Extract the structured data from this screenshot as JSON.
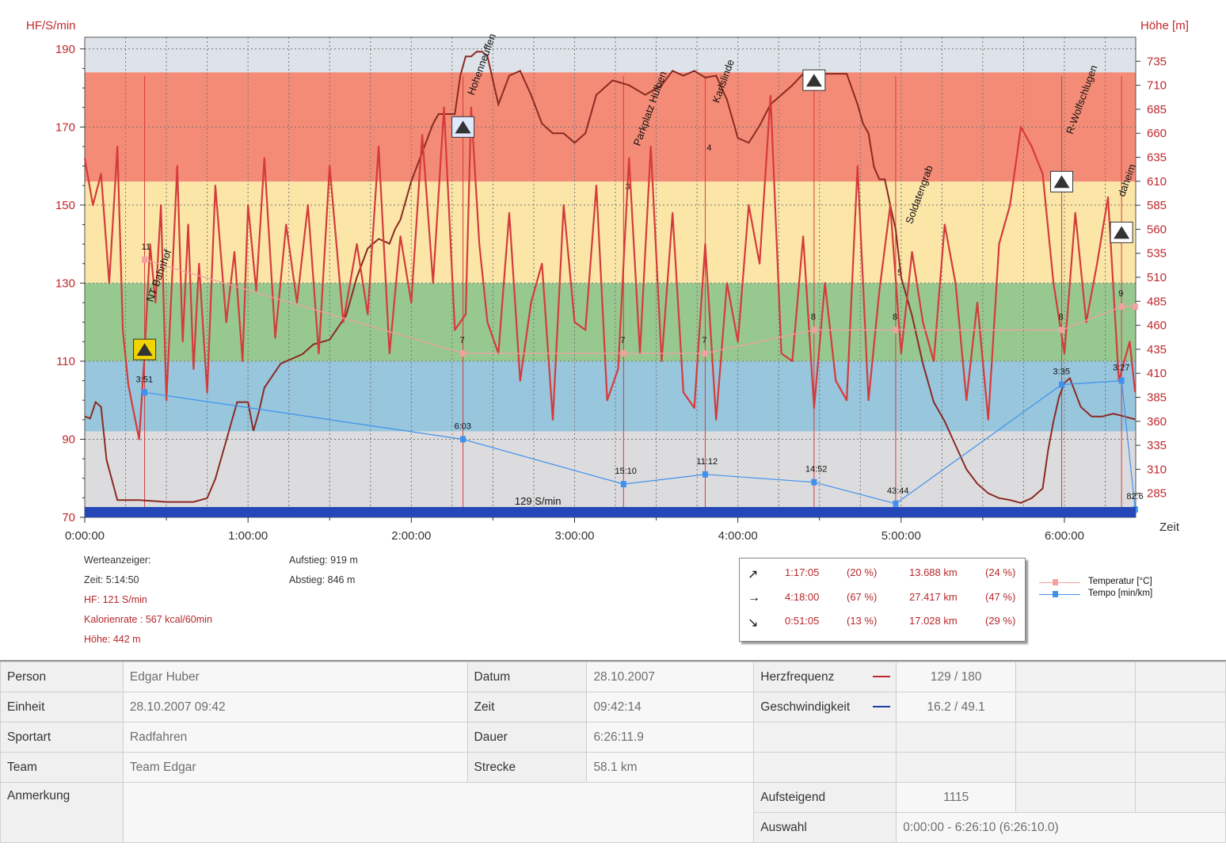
{
  "chart_data": {
    "type": "line",
    "y_left_label": "HF/S/min",
    "y_right_label": "Höhe [m]",
    "x_label": "Zeit",
    "y_left_ticks": [
      190,
      170,
      150,
      130,
      110,
      90,
      70
    ],
    "y_left_range": [
      70,
      193
    ],
    "y_right_ticks": [
      735,
      710,
      685,
      660,
      635,
      610,
      585,
      560,
      535,
      510,
      485,
      460,
      435,
      410,
      385,
      360,
      335,
      310,
      285
    ],
    "y_right_range": [
      260,
      760
    ],
    "x_ticks": [
      "0:00:00",
      "1:00:00",
      "2:00:00",
      "3:00:00",
      "4:00:00",
      "5:00:00",
      "6:00:00"
    ],
    "x_tick_minutes": [
      0,
      60,
      120,
      180,
      240,
      300,
      360
    ],
    "x_range_minutes": [
      0,
      386.2
    ],
    "zones": [
      {
        "from": 184,
        "to": 193,
        "color": "#dde3e9"
      },
      {
        "from": 156,
        "to": 184,
        "color": "#f48b76"
      },
      {
        "from": 130,
        "to": 156,
        "color": "#fbe6a8"
      },
      {
        "from": 110,
        "to": 130,
        "color": "#97c890"
      },
      {
        "from": 92,
        "to": 110,
        "color": "#97c6dd"
      },
      {
        "from": 70,
        "to": 92,
        "color": "#dcdcde"
      }
    ],
    "speed_band_label": "129 S/min",
    "series": [
      {
        "name": "HF",
        "color": "#d53b3b",
        "x": [
          0,
          3,
          6,
          9,
          12,
          14,
          16,
          18,
          20,
          22,
          24,
          26,
          28,
          30,
          32,
          34,
          36,
          38,
          40,
          42,
          45,
          48,
          52,
          55,
          58,
          60,
          63,
          66,
          70,
          74,
          78,
          82,
          86,
          90,
          95,
          100,
          104,
          108,
          112,
          116,
          120,
          124,
          128,
          132,
          136,
          140,
          142,
          145,
          148,
          152,
          156,
          160,
          164,
          168,
          172,
          176,
          180,
          184,
          188,
          192,
          196,
          200,
          204,
          208,
          212,
          216,
          220,
          224,
          228,
          232,
          236,
          240,
          244,
          248,
          252,
          256,
          260,
          264,
          268,
          272,
          276,
          280,
          284,
          288,
          292,
          296,
          300,
          304,
          308,
          312,
          316,
          320,
          324,
          328,
          332,
          336,
          340,
          344,
          348,
          352,
          356,
          360,
          364,
          368,
          372,
          376,
          380,
          384,
          386
        ],
        "values": [
          162,
          150,
          158,
          130,
          165,
          118,
          104,
          97,
          90,
          112,
          140,
          125,
          150,
          100,
          130,
          160,
          115,
          145,
          108,
          135,
          102,
          155,
          120,
          138,
          110,
          150,
          128,
          162,
          116,
          145,
          125,
          150,
          112,
          160,
          120,
          140,
          122,
          165,
          112,
          142,
          125,
          168,
          130,
          175,
          118,
          122,
          175,
          140,
          120,
          112,
          148,
          105,
          125,
          135,
          95,
          150,
          120,
          118,
          155,
          100,
          108,
          162,
          112,
          165,
          110,
          148,
          102,
          98,
          140,
          95,
          130,
          115,
          150,
          135,
          178,
          112,
          110,
          142,
          98,
          130,
          105,
          100,
          160,
          100,
          128,
          150,
          112,
          138,
          120,
          110,
          145,
          130,
          100,
          125,
          95,
          140,
          150,
          170,
          165,
          158,
          130,
          112,
          148,
          120,
          135,
          152,
          105,
          115,
          102
        ]
      },
      {
        "name": "Höhe",
        "color": "#8b2a22",
        "x": [
          0,
          2,
          4,
          6,
          8,
          12,
          20,
          30,
          40,
          45,
          48,
          52,
          56,
          60,
          62,
          64,
          66,
          72,
          80,
          84,
          90,
          96,
          100,
          104,
          108,
          112,
          114,
          116,
          120,
          124,
          128,
          130,
          133,
          136,
          138,
          140,
          142,
          144,
          146,
          148,
          152,
          156,
          160,
          164,
          168,
          172,
          176,
          180,
          184,
          188,
          190,
          194,
          200,
          206,
          212,
          216,
          220,
          224,
          228,
          232,
          236,
          240,
          244,
          248,
          252,
          256,
          260,
          264,
          268,
          272,
          276,
          280,
          284,
          286,
          288,
          290,
          292,
          294,
          296,
          298,
          300,
          304,
          308,
          312,
          316,
          320,
          324,
          328,
          332,
          336,
          340,
          344,
          348,
          352,
          354,
          356,
          358,
          360,
          362,
          366,
          370,
          374,
          378,
          382,
          386
        ],
        "values": [
          365,
          363,
          380,
          375,
          320,
          278,
          278,
          276,
          276,
          280,
          300,
          340,
          380,
          380,
          350,
          370,
          395,
          420,
          430,
          440,
          445,
          470,
          510,
          540,
          550,
          545,
          560,
          570,
          610,
          640,
          670,
          680,
          680,
          680,
          720,
          740,
          740,
          745,
          745,
          740,
          690,
          720,
          725,
          700,
          670,
          660,
          660,
          650,
          660,
          700,
          705,
          715,
          710,
          700,
          710,
          725,
          720,
          725,
          718,
          720,
          695,
          655,
          650,
          668,
          690,
          700,
          710,
          722,
          722,
          722,
          722,
          722,
          690,
          670,
          660,
          625,
          612,
          612,
          585,
          560,
          510,
          470,
          420,
          380,
          360,
          335,
          310,
          295,
          285,
          280,
          278,
          275,
          280,
          290,
          330,
          360,
          385,
          400,
          405,
          375,
          365,
          365,
          368,
          365,
          362
        ]
      },
      {
        "name": "Temperatur [°C]",
        "color": "#f4a0a0",
        "x": [
          22,
          139,
          198,
          228,
          268,
          298,
          359,
          381,
          386
        ],
        "values": [
          11,
          7,
          7,
          7,
          8,
          8,
          8,
          9,
          9
        ],
        "point_labels": [
          "11",
          "7",
          "7",
          "7",
          "8",
          "8",
          "8",
          "9",
          ""
        ]
      },
      {
        "name": "Tempo [min/km]",
        "color": "#3f91ee",
        "x": [
          22,
          139,
          198,
          228,
          268,
          298,
          359,
          381,
          386
        ],
        "y_hf_scale": [
          102,
          90,
          78.5,
          81,
          79,
          73.5,
          104,
          105,
          72
        ],
        "point_labels": [
          "3:51",
          "6:03",
          "15:10",
          "11:12",
          "14:52",
          "43:44",
          "3:35",
          "3:27",
          "82:6"
        ]
      }
    ],
    "markers_minutes": [
      22,
      139,
      198,
      228,
      268,
      298,
      359,
      381
    ],
    "marker_numbers": [
      {
        "x": 198,
        "hf": 154,
        "text": "3"
      },
      {
        "x": 228,
        "hf": 164,
        "text": "4"
      },
      {
        "x": 298,
        "hf": 132,
        "text": "5"
      }
    ],
    "places": [
      {
        "x": 25,
        "hf": 125,
        "text": "NT Bahnhof"
      },
      {
        "x": 143,
        "hf": 178,
        "text": "Hohenneuffen"
      },
      {
        "x": 204,
        "hf": 165,
        "text": "Parkplatz Hülben"
      },
      {
        "x": 233,
        "hf": 176,
        "text": "Karlslinde"
      },
      {
        "x": 304,
        "hf": 145,
        "text": "Soldatengrab"
      },
      {
        "x": 363,
        "hf": 168,
        "text": "R-Wolfschlugen"
      },
      {
        "x": 382,
        "hf": 152,
        "text": "daheim"
      }
    ]
  },
  "readout": {
    "title": "Werteanzeiger:",
    "zeit": "Zeit: 5:14:50",
    "hf": "HF: 121 S/min",
    "kalorien": "Kalorienrate : 567 kcal/60min",
    "hoehe": "Höhe: 442 m",
    "aufstieg": "Aufstieg: 919 m",
    "abstieg": "Abstieg: 846 m"
  },
  "stats": [
    {
      "arrow": "↗",
      "time": "1:17:05",
      "tpct": "(20 %)",
      "dist": "13.688 km",
      "dpct": "(24 %)"
    },
    {
      "arrow": "→",
      "time": "4:18:00",
      "tpct": "(67 %)",
      "dist": "27.417 km",
      "dpct": "(47 %)"
    },
    {
      "arrow": "↘",
      "time": "0:51:05",
      "tpct": "(13 %)",
      "dist": "17.028 km",
      "dpct": "(29 %)"
    }
  ],
  "legend": [
    {
      "label": "Temperatur [°C]",
      "color": "#f4a0a0"
    },
    {
      "label": "Tempo [min/km]",
      "color": "#3f91ee"
    }
  ],
  "table": {
    "person_label": "Person",
    "person": "Edgar Huber",
    "einheit_label": "Einheit",
    "einheit": "28.10.2007 09:42",
    "sportart_label": "Sportart",
    "sportart": "Radfahren",
    "team_label": "Team",
    "team": "Team Edgar",
    "anmerkung_label": "Anmerkung",
    "datum_label": "Datum",
    "datum": "28.10.2007",
    "zeit_label": "Zeit",
    "zeit": "09:42:14",
    "dauer_label": "Dauer",
    "dauer": "6:26:11.9",
    "strecke_label": "Strecke",
    "strecke": "58.1 km",
    "hf_label": "Herzfrequenz",
    "hf": "129 / 180",
    "hf_color": "#c0282c",
    "speed_label": "Geschwindigkeit",
    "speed": "16.2 / 49.1",
    "speed_color": "#1a3ea8",
    "aufsteigend_label": "Aufsteigend",
    "aufsteigend": "1115",
    "auswahl_label": "Auswahl",
    "auswahl": "0:00:00 - 6:26:10 (6:26:10.0)"
  }
}
